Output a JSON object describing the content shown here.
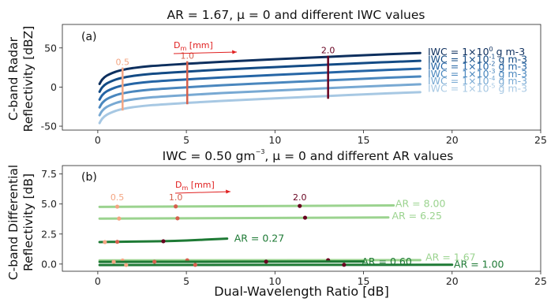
{
  "colors": {
    "iwc": [
      "#0d2f5e",
      "#134b85",
      "#2565a5",
      "#4a87be",
      "#78a9d3",
      "#a7c8e3"
    ],
    "ar_light": "#9bd38f",
    "ar_dark": "#1e7a35",
    "dm_05": "#f4a582",
    "dm_10": "#d6604d",
    "dm_20": "#67001f",
    "dm_arrow": "#e02020"
  },
  "chart_data": [
    {
      "type": "line",
      "panel_label": "(a)",
      "title": "AR = 1.67, μ = 0 and different IWC values",
      "xlabel": "",
      "ylabel": [
        "C-band Radar",
        "Reflectivity [dBZ]"
      ],
      "xlim": [
        -2,
        25
      ],
      "ylim": [
        -55,
        80
      ],
      "xticks": [
        0,
        5,
        10,
        15,
        20,
        25
      ],
      "yticks": [
        -50,
        0,
        50
      ],
      "grid": false,
      "legend_position": "right",
      "iwc_base_label": "IWC = 1×10",
      "iwc_unit_label": "g m-3",
      "series": [
        {
          "name": "IWC = 1×10^0 g m-3",
          "exponent": "0",
          "offset": 0,
          "x": [
            0.1,
            0.25,
            0.5,
            1,
            1.4,
            2,
            3,
            5,
            7,
            10,
            13,
            16,
            18.2
          ],
          "y": [
            4,
            9.6,
            14.5,
            19.5,
            21.9,
            24.3,
            26.8,
            29.7,
            32.3,
            35.5,
            38.6,
            41.6,
            43.5
          ]
        },
        {
          "name": "IWC = 1×10^-1 g m-3",
          "exponent": "-1",
          "offset": -10,
          "x": [
            0.1,
            0.25,
            0.5,
            1,
            1.4,
            2,
            3,
            5,
            7,
            10,
            13,
            16,
            18.2
          ],
          "y": [
            -6,
            -0.4,
            4.5,
            9.5,
            11.9,
            14.3,
            16.8,
            19.7,
            22.3,
            25.5,
            28.6,
            31.6,
            33.5
          ]
        },
        {
          "name": "IWC = 1×10^-2 g m-3",
          "exponent": "-2",
          "offset": -20,
          "x": [
            0.1,
            0.25,
            0.5,
            1,
            1.4,
            2,
            3,
            5,
            7,
            10,
            13,
            16,
            18.2
          ],
          "y": [
            -16,
            -10.4,
            -5.5,
            -0.5,
            1.9,
            4.3,
            6.8,
            9.7,
            12.3,
            15.5,
            18.6,
            21.6,
            23.5
          ]
        },
        {
          "name": "IWC = 1×10^-3 g m-3",
          "exponent": "-3",
          "offset": -30,
          "x": [
            0.1,
            0.25,
            0.5,
            1,
            1.4,
            2,
            3,
            5,
            7,
            10,
            13,
            16,
            18.2
          ],
          "y": [
            -26,
            -20.4,
            -15.5,
            -10.5,
            -8.1,
            -5.7,
            -3.2,
            -0.3,
            2.3,
            5.5,
            8.6,
            11.6,
            13.5
          ]
        },
        {
          "name": "IWC = 1×10^-4 g m-3",
          "exponent": "-4",
          "offset": -40,
          "x": [
            0.1,
            0.25,
            0.5,
            1,
            1.4,
            2,
            3,
            5,
            7,
            10,
            13,
            16,
            18.2
          ],
          "y": [
            -36,
            -30.4,
            -25.5,
            -20.5,
            -18.1,
            -15.7,
            -13.2,
            -10.3,
            -7.7,
            -4.5,
            -1.4,
            1.6,
            3.5
          ]
        },
        {
          "name": "IWC = 1×10^-5 g m-3",
          "exponent": "-5",
          "offset": -50,
          "x": [
            0.1,
            0.25,
            0.5,
            1,
            1.4,
            2,
            3,
            5,
            7,
            10,
            13,
            16,
            18.2
          ],
          "y": [
            -46,
            -40.4,
            -35.5,
            -30.5,
            -28.1,
            -25.7,
            -23.2,
            -20.3,
            -17.7,
            -14.5,
            -11.4,
            -8.4,
            -6.5
          ]
        }
      ],
      "dm_title": "D",
      "dm_sub": "m",
      "dm_unit": "[mm]",
      "dm_markers": [
        {
          "label": "0.5",
          "x": 1.4,
          "y_from": -30,
          "y_to": 25,
          "color_key": "dm_05"
        },
        {
          "label": "1.0",
          "x": 5.05,
          "y_from": -22,
          "y_to": 33,
          "color_key": "dm_10"
        },
        {
          "label": "2.0",
          "x": 13,
          "y_from": -15,
          "y_to": 40,
          "color_key": "dm_20"
        }
      ]
    },
    {
      "type": "line",
      "panel_label": "(b)",
      "title_pre": "IWC = 0.50 gm",
      "title_exp": "−3",
      "title_post": ", μ = 0 and different AR values",
      "xlabel": "Dual-Wavelength Ratio [dB]",
      "ylabel": [
        "C-band Differential",
        "Reflectivity [dB]"
      ],
      "xlim": [
        -2,
        25
      ],
      "ylim": [
        -0.6,
        8.2
      ],
      "xticks": [
        0,
        5,
        10,
        15,
        20,
        25
      ],
      "yticks": [
        0.0,
        2.5,
        5.0,
        7.5
      ],
      "ytick_labels": [
        "0.0",
        "2.5",
        "5.0",
        "7.5"
      ],
      "grid": false,
      "dm_title": "D",
      "dm_sub": "m",
      "dm_unit": "[mm]",
      "dm_labels": [
        {
          "label": "0.5",
          "x": 1.1,
          "y": 5.3,
          "color_key": "dm_05"
        },
        {
          "label": "1.0",
          "x": 4.4,
          "y": 5.3,
          "color_key": "dm_10"
        },
        {
          "label": "2.0",
          "x": 11.4,
          "y": 5.3,
          "color_key": "dm_20"
        }
      ],
      "series": [
        {
          "name": "AR = 8.00",
          "color_key": "ar_light",
          "x": [
            0.1,
            16.7
          ],
          "y": [
            4.76,
            4.88
          ],
          "label_x": 16.8,
          "label_y": 5.0,
          "dots": [
            {
              "x": 1.1,
              "y": 4.78,
              "k": "dm_05"
            },
            {
              "x": 4.4,
              "y": 4.8,
              "k": "dm_10"
            },
            {
              "x": 11.4,
              "y": 4.84,
              "k": "dm_20"
            }
          ]
        },
        {
          "name": "AR = 6.25",
          "color_key": "ar_light",
          "x": [
            0.1,
            16.4
          ],
          "y": [
            3.78,
            3.88
          ],
          "label_x": 16.6,
          "label_y": 4.0,
          "dots": [
            {
              "x": 1.2,
              "y": 3.79,
              "k": "dm_05"
            },
            {
              "x": 4.5,
              "y": 3.81,
              "k": "dm_10"
            },
            {
              "x": 11.7,
              "y": 3.86,
              "k": "dm_20"
            }
          ]
        },
        {
          "name": "AR = 0.27",
          "color_key": "ar_dark",
          "x": [
            0.1,
            1,
            2,
            3.7,
            5,
            7.3
          ],
          "y": [
            1.83,
            1.85,
            1.87,
            1.9,
            1.96,
            2.12
          ],
          "label_x": 7.7,
          "label_y": 2.12,
          "dots": [
            {
              "x": 0.4,
              "y": 1.83,
              "k": "dm_05"
            },
            {
              "x": 1.1,
              "y": 1.85,
              "k": "dm_10"
            },
            {
              "x": 3.7,
              "y": 1.9,
              "k": "dm_20"
            }
          ]
        },
        {
          "name": "AR = 1.67",
          "color_key": "ar_light",
          "x": [
            0.1,
            18.2
          ],
          "y": [
            0.3,
            0.33
          ],
          "label_x": 18.5,
          "label_y": 0.55,
          "dots": [
            {
              "x": 1.4,
              "y": 0.3,
              "k": "dm_05"
            },
            {
              "x": 5.05,
              "y": 0.31,
              "k": "dm_10"
            },
            {
              "x": 13,
              "y": 0.32,
              "k": "dm_20"
            }
          ]
        },
        {
          "name": "AR = 0.60",
          "color_key": "ar_dark",
          "x": [
            0.1,
            15
          ],
          "y": [
            0.18,
            0.21
          ],
          "label_x": 14.9,
          "label_y": 0.2,
          "dots": [
            {
              "x": 0.9,
              "y": 0.18,
              "k": "dm_05"
            },
            {
              "x": 3.2,
              "y": 0.19,
              "k": "dm_10"
            },
            {
              "x": 9.5,
              "y": 0.2,
              "k": "dm_20"
            }
          ]
        },
        {
          "name": "AR = 1.00",
          "color_key": "ar_dark",
          "x": [
            0.1,
            20
          ],
          "y": [
            -0.08,
            -0.06
          ],
          "label_x": 20.1,
          "label_y": -0.04,
          "dots": [
            {
              "x": 1.6,
              "y": -0.08,
              "k": "dm_05"
            },
            {
              "x": 5.5,
              "y": -0.07,
              "k": "dm_10"
            },
            {
              "x": 13.9,
              "y": -0.06,
              "k": "dm_20"
            }
          ]
        }
      ]
    }
  ]
}
